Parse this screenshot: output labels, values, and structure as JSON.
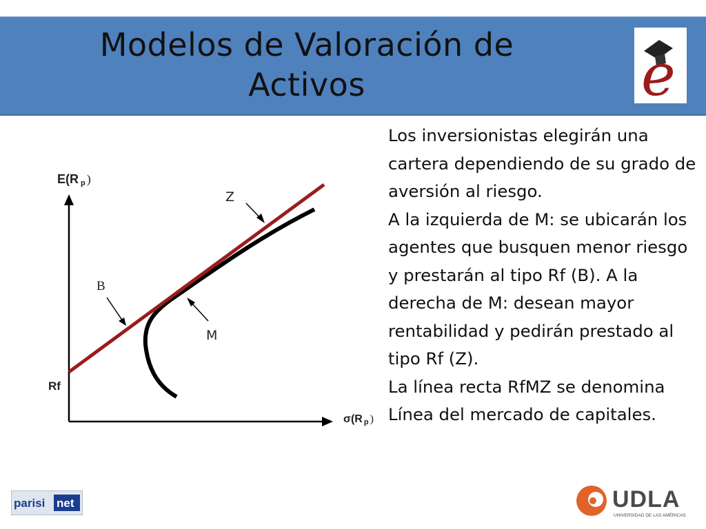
{
  "slide": {
    "title_line1": "Modelos de Valoración de",
    "title_line2": "Activos"
  },
  "diagram": {
    "y_axis_label": "E(R",
    "y_axis_sub": "p",
    "x_axis_label": "σ(R",
    "x_axis_sub": "p",
    "rf_label": "Rf",
    "label_z": "Z",
    "label_b": "B",
    "label_m": "M",
    "line_color": "#9b1c1c",
    "curve_color": "#000000"
  },
  "text": {
    "para1": "Los inversionistas elegirán una cartera dependiendo de su grado de aversión al riesgo.",
    "para2": "A la izquierda de M: se ubicarán los agentes que busquen menor riesgo y prestarán al tipo Rf (B). A la derecha de M: desean mayor rentabilidad y pedirán prestado al tipo Rf (Z).",
    "para3": "La línea recta RfMZ se denomina Línea del mercado de capitales."
  },
  "logos": {
    "left_word1": "parisi",
    "left_word2": "net",
    "right_name": "UDLA",
    "right_sub": "UNIVERSIDAD DE LAS AMÉRICAS",
    "e_letter": "e",
    "brand_color": "#9b1c1c",
    "udla_orange": "#e2632a"
  }
}
